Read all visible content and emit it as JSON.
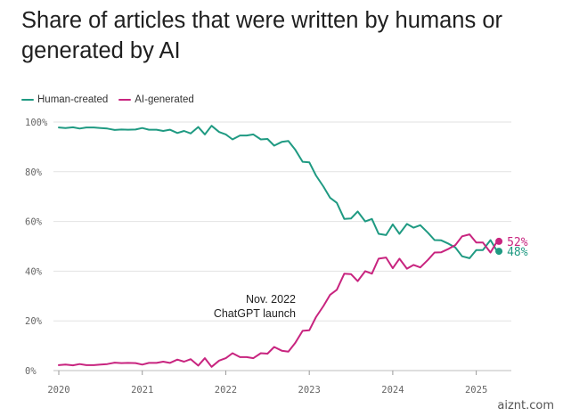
{
  "chart_data": {
    "type": "line",
    "title": "Share of articles that were written by humans or generated by AI",
    "xlabel": "",
    "ylabel": "",
    "xlim": [
      2020.0,
      2025.42
    ],
    "ylim": [
      0,
      100
    ],
    "x_ticks": [
      2020,
      2021,
      2022,
      2023,
      2024,
      2025
    ],
    "y_ticks": [
      0,
      20,
      40,
      60,
      80,
      100
    ],
    "y_tick_labels": [
      "0%",
      "20%",
      "40%",
      "60%",
      "80%",
      "100%"
    ],
    "grid": true,
    "legend_position": "top-left",
    "annotation": [
      "Nov. 2022",
      "ChatGPT launch"
    ],
    "series": [
      {
        "name": "Human-created",
        "color": "#1f9a82",
        "end_label": "48%",
        "points": [
          [
            2020.0,
            97.8
          ],
          [
            2020.08,
            97.6
          ],
          [
            2020.17,
            97.9
          ],
          [
            2020.25,
            97.4
          ],
          [
            2020.33,
            97.8
          ],
          [
            2020.42,
            97.8
          ],
          [
            2020.5,
            97.6
          ],
          [
            2020.58,
            97.4
          ],
          [
            2020.67,
            96.8
          ],
          [
            2020.75,
            97.0
          ],
          [
            2020.83,
            96.9
          ],
          [
            2020.92,
            97.0
          ],
          [
            2021.0,
            97.6
          ],
          [
            2021.08,
            96.9
          ],
          [
            2021.17,
            96.9
          ],
          [
            2021.25,
            96.4
          ],
          [
            2021.33,
            96.9
          ],
          [
            2021.42,
            95.6
          ],
          [
            2021.5,
            96.4
          ],
          [
            2021.58,
            95.4
          ],
          [
            2021.67,
            98.0
          ],
          [
            2021.75,
            95.0
          ],
          [
            2021.83,
            98.5
          ],
          [
            2021.92,
            96.0
          ],
          [
            2022.0,
            95.0
          ],
          [
            2022.08,
            93.0
          ],
          [
            2022.17,
            94.6
          ],
          [
            2022.25,
            94.6
          ],
          [
            2022.33,
            95.0
          ],
          [
            2022.42,
            93.0
          ],
          [
            2022.5,
            93.2
          ],
          [
            2022.58,
            90.5
          ],
          [
            2022.67,
            92.0
          ],
          [
            2022.75,
            92.4
          ],
          [
            2022.83,
            89.0
          ],
          [
            2022.92,
            84.0
          ],
          [
            2023.0,
            83.8
          ],
          [
            2023.08,
            78.5
          ],
          [
            2023.17,
            74.0
          ],
          [
            2023.25,
            69.5
          ],
          [
            2023.33,
            67.5
          ],
          [
            2023.42,
            61.0
          ],
          [
            2023.5,
            61.2
          ],
          [
            2023.58,
            64.0
          ],
          [
            2023.67,
            60.0
          ],
          [
            2023.75,
            61.0
          ],
          [
            2023.83,
            55.0
          ],
          [
            2023.92,
            54.5
          ],
          [
            2024.0,
            58.8
          ],
          [
            2024.08,
            55.0
          ],
          [
            2024.17,
            59.0
          ],
          [
            2024.25,
            57.5
          ],
          [
            2024.33,
            58.5
          ],
          [
            2024.42,
            55.5
          ],
          [
            2024.5,
            52.5
          ],
          [
            2024.58,
            52.4
          ],
          [
            2024.67,
            51.0
          ],
          [
            2024.75,
            49.5
          ],
          [
            2024.83,
            46.0
          ],
          [
            2024.92,
            45.2
          ],
          [
            2025.0,
            48.5
          ],
          [
            2025.08,
            48.5
          ],
          [
            2025.17,
            52.5
          ],
          [
            2025.25,
            48.0
          ]
        ]
      },
      {
        "name": "AI-generated",
        "color": "#c8247f",
        "end_label": "52%",
        "points": [
          [
            2020.0,
            2.2
          ],
          [
            2020.08,
            2.4
          ],
          [
            2020.17,
            2.1
          ],
          [
            2020.25,
            2.6
          ],
          [
            2020.33,
            2.2
          ],
          [
            2020.42,
            2.2
          ],
          [
            2020.5,
            2.4
          ],
          [
            2020.58,
            2.6
          ],
          [
            2020.67,
            3.2
          ],
          [
            2020.75,
            3.0
          ],
          [
            2020.83,
            3.1
          ],
          [
            2020.92,
            3.0
          ],
          [
            2021.0,
            2.4
          ],
          [
            2021.08,
            3.1
          ],
          [
            2021.17,
            3.1
          ],
          [
            2021.25,
            3.6
          ],
          [
            2021.33,
            3.1
          ],
          [
            2021.42,
            4.4
          ],
          [
            2021.5,
            3.6
          ],
          [
            2021.58,
            4.6
          ],
          [
            2021.67,
            2.0
          ],
          [
            2021.75,
            5.0
          ],
          [
            2021.83,
            1.5
          ],
          [
            2021.92,
            4.0
          ],
          [
            2022.0,
            5.0
          ],
          [
            2022.08,
            7.0
          ],
          [
            2022.17,
            5.4
          ],
          [
            2022.25,
            5.4
          ],
          [
            2022.33,
            5.0
          ],
          [
            2022.42,
            7.0
          ],
          [
            2022.5,
            6.8
          ],
          [
            2022.58,
            9.5
          ],
          [
            2022.67,
            8.0
          ],
          [
            2022.75,
            7.6
          ],
          [
            2022.83,
            11.0
          ],
          [
            2022.92,
            16.0
          ],
          [
            2023.0,
            16.2
          ],
          [
            2023.08,
            21.5
          ],
          [
            2023.17,
            26.0
          ],
          [
            2023.25,
            30.5
          ],
          [
            2023.33,
            32.5
          ],
          [
            2023.42,
            39.0
          ],
          [
            2023.5,
            38.8
          ],
          [
            2023.58,
            36.0
          ],
          [
            2023.67,
            40.0
          ],
          [
            2023.75,
            39.0
          ],
          [
            2023.83,
            45.0
          ],
          [
            2023.92,
            45.5
          ],
          [
            2024.0,
            41.2
          ],
          [
            2024.08,
            45.0
          ],
          [
            2024.17,
            41.0
          ],
          [
            2024.25,
            42.5
          ],
          [
            2024.33,
            41.5
          ],
          [
            2024.42,
            44.5
          ],
          [
            2024.5,
            47.5
          ],
          [
            2024.58,
            47.6
          ],
          [
            2024.67,
            49.0
          ],
          [
            2024.75,
            50.5
          ],
          [
            2024.83,
            54.0
          ],
          [
            2024.92,
            54.8
          ],
          [
            2025.0,
            51.5
          ],
          [
            2025.08,
            51.5
          ],
          [
            2025.17,
            47.5
          ],
          [
            2025.25,
            52.0
          ]
        ]
      }
    ]
  },
  "watermark": "aiznt.com"
}
